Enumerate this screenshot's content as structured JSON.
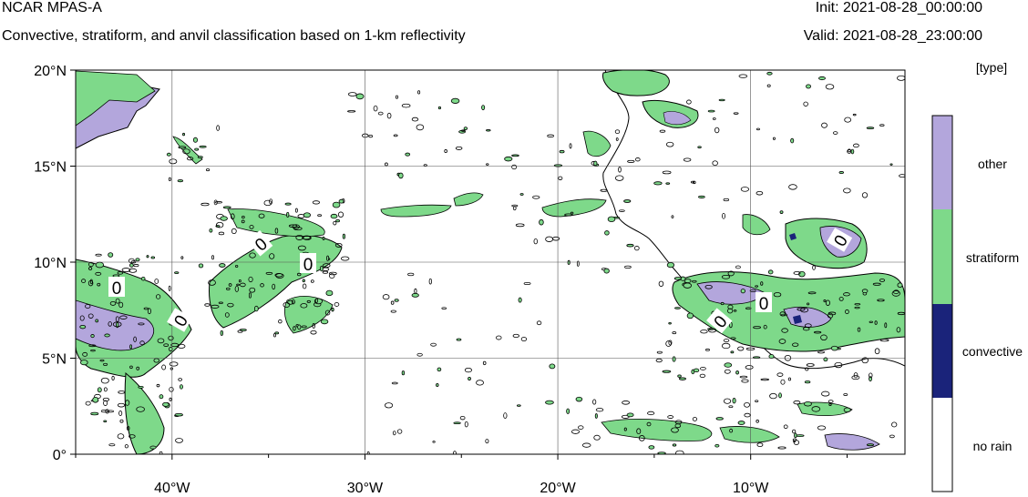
{
  "header": {
    "model": "NCAR MPAS-A",
    "subtitle": "Convective, stratiform, and anvil classification based on 1-km reflectivity",
    "init": "Init: 2021-08-28_00:00:00",
    "valid": "Valid: 2021-08-28_23:00:00"
  },
  "map": {
    "lat_labels": [
      "20°N",
      "15°N",
      "10°N",
      "5°N",
      "0°"
    ],
    "lon_labels": [
      "40°W",
      "30°W",
      "20°W",
      "10°W"
    ],
    "lat_values": [
      20,
      15,
      10,
      5,
      0
    ],
    "lon_values": [
      -40,
      -30,
      -20,
      -10
    ],
    "lon_range": [
      -45,
      -2
    ],
    "lat_range": [
      0,
      20
    ],
    "contour_label": "0"
  },
  "colorbar": {
    "unit": "[type]",
    "classes": [
      {
        "label": "other",
        "color": "#b3a6dc"
      },
      {
        "label": "stratiform",
        "color": "#7ed98a"
      },
      {
        "label": "convective",
        "color": "#1a237a"
      },
      {
        "label": "no rain",
        "color": "#ffffff"
      }
    ]
  }
}
